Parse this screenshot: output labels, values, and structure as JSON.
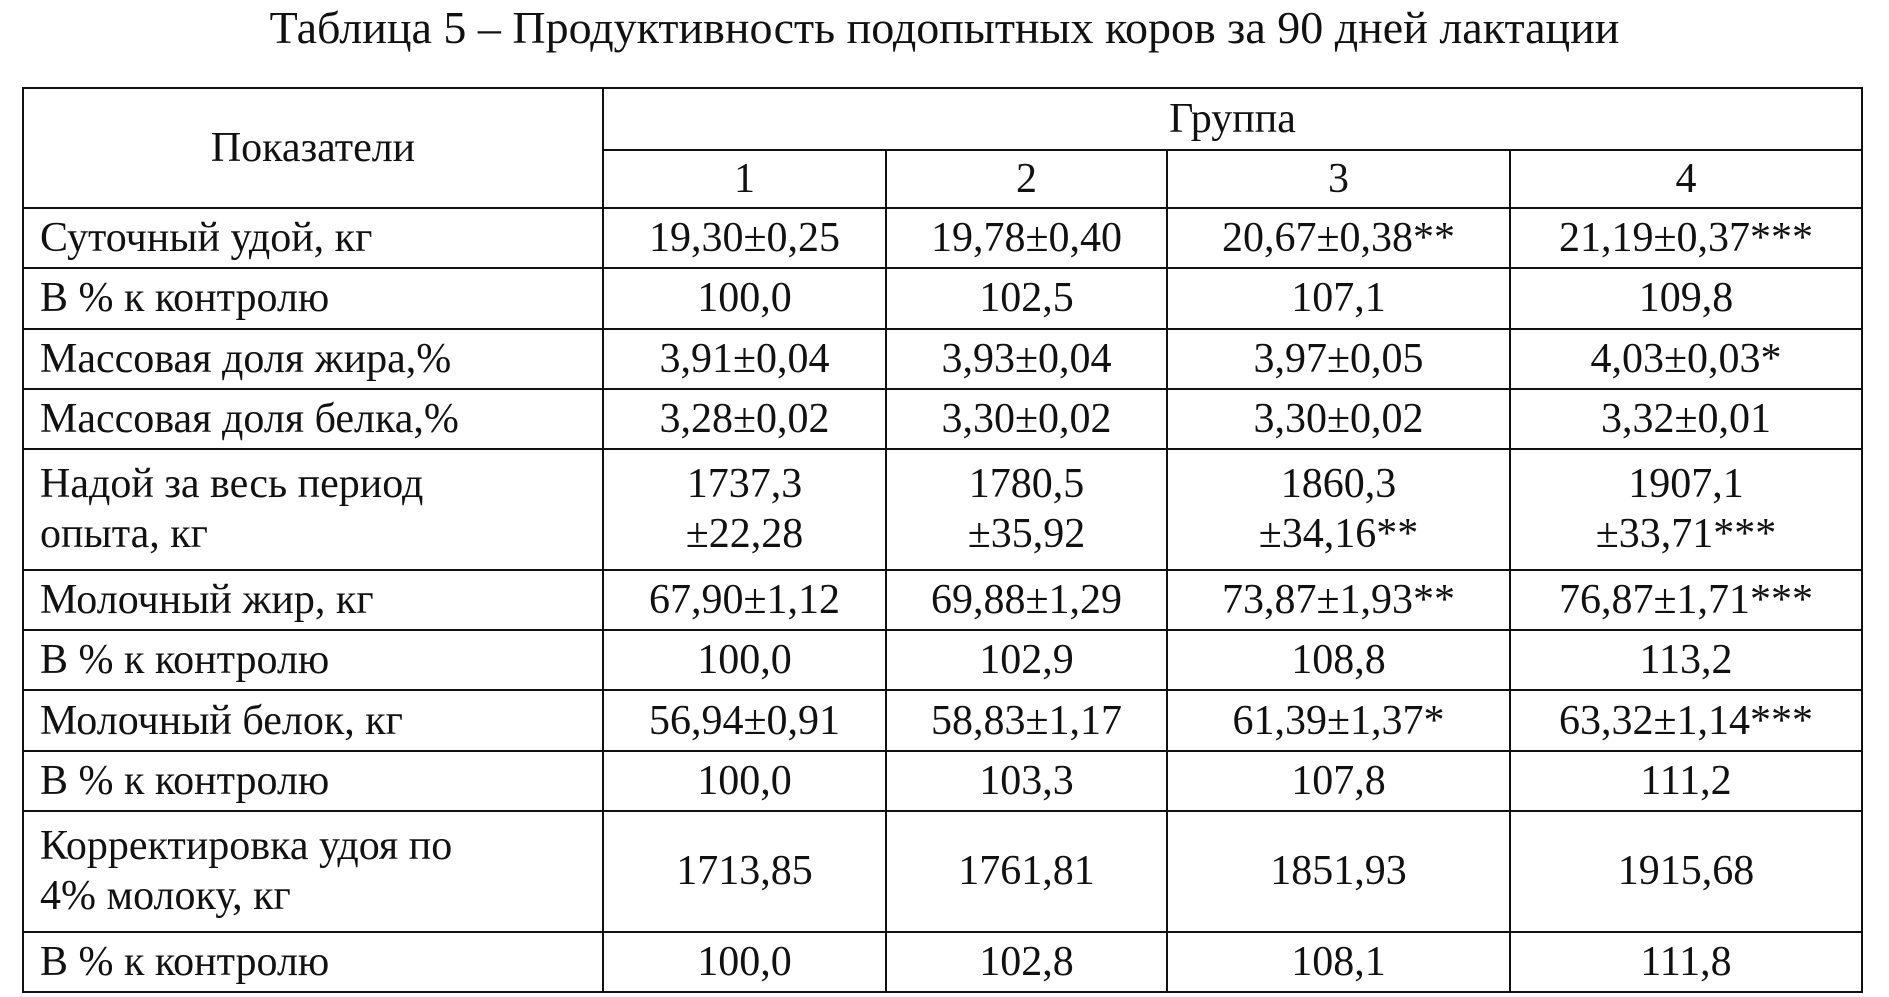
{
  "title": "Таблица 5 – Продуктивность подопытных коров за 90 дней лактации",
  "table": {
    "header": {
      "indicator": "Показатели",
      "group": "Группа",
      "groups": [
        "1",
        "2",
        "3",
        "4"
      ]
    },
    "rows": [
      [
        [
          "Суточный удой, кг"
        ],
        [
          "19,30±0,25"
        ],
        [
          "19,78±0,40"
        ],
        [
          "20,67±0,38**"
        ],
        [
          "21,19±0,37***"
        ]
      ],
      [
        [
          "В % к контролю"
        ],
        [
          "100,0"
        ],
        [
          "102,5"
        ],
        [
          "107,1"
        ],
        [
          "109,8"
        ]
      ],
      [
        [
          "Массовая доля жира,%"
        ],
        [
          "3,91±0,04"
        ],
        [
          "3,93±0,04"
        ],
        [
          "3,97±0,05"
        ],
        [
          "4,03±0,03*"
        ]
      ],
      [
        [
          "Массовая доля белка,%"
        ],
        [
          "3,28±0,02"
        ],
        [
          "3,30±0,02"
        ],
        [
          "3,30±0,02"
        ],
        [
          "3,32±0,01"
        ]
      ],
      [
        [
          "Надой за весь период",
          "опыта, кг"
        ],
        [
          "1737,3",
          "±22,28"
        ],
        [
          "1780,5",
          "±35,92"
        ],
        [
          "1860,3",
          "±34,16**"
        ],
        [
          "1907,1",
          "±33,71***"
        ]
      ],
      [
        [
          "Молочный жир, кг"
        ],
        [
          "67,90±1,12"
        ],
        [
          "69,88±1,29"
        ],
        [
          "73,87±1,93**"
        ],
        [
          "76,87±1,71***"
        ]
      ],
      [
        [
          "В % к контролю"
        ],
        [
          "100,0"
        ],
        [
          "102,9"
        ],
        [
          "108,8"
        ],
        [
          "113,2"
        ]
      ],
      [
        [
          "Молочный белок, кг"
        ],
        [
          "56,94±0,91"
        ],
        [
          "58,83±1,17"
        ],
        [
          "61,39±1,37*"
        ],
        [
          "63,32±1,14***"
        ]
      ],
      [
        [
          "В % к контролю"
        ],
        [
          "100,0"
        ],
        [
          "103,3"
        ],
        [
          "107,8"
        ],
        [
          "111,2"
        ]
      ],
      [
        [
          "Корректировка удоя по",
          "4% молоку, кг"
        ],
        [
          "1713,85"
        ],
        [
          "1761,81"
        ],
        [
          "1851,93"
        ],
        [
          "1915,68"
        ]
      ],
      [
        [
          "В % к контролю"
        ],
        [
          "100,0"
        ],
        [
          "102,8"
        ],
        [
          "108,1"
        ],
        [
          "111,8"
        ]
      ]
    ]
  }
}
